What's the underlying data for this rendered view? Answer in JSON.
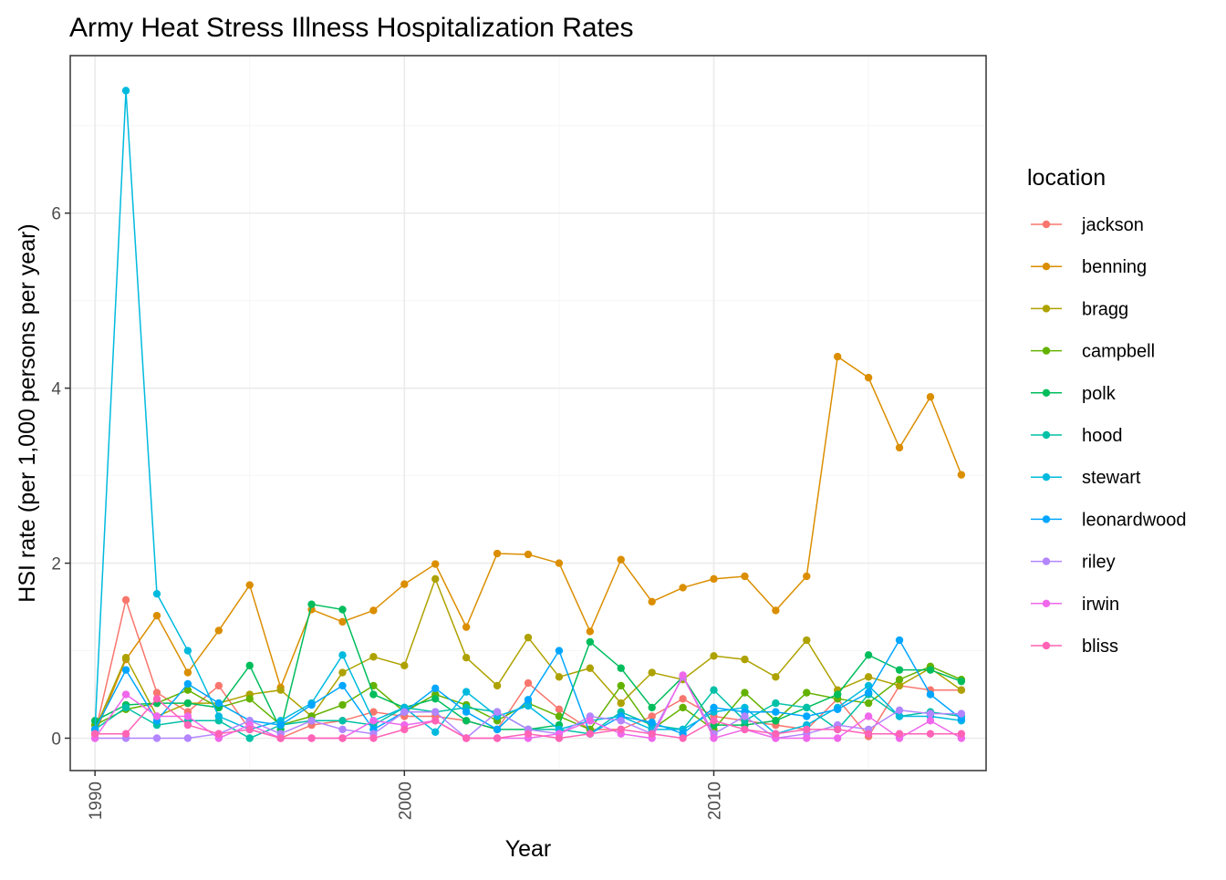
{
  "chart_data": {
    "type": "line",
    "title": "Army Heat Stress Illness Hospitalization Rates",
    "xlabel": "Year",
    "ylabel": "HSI rate (per 1,000 persons per year)",
    "xlim": [
      1989.2,
      2018.8
    ],
    "ylim": [
      -0.37,
      7.8
    ],
    "x_ticks": [
      1990,
      2000,
      2010
    ],
    "y_ticks": [
      0,
      2,
      4,
      6
    ],
    "grid": true,
    "legend": {
      "title": "location",
      "position": "right"
    },
    "x": [
      1990,
      1991,
      1992,
      1993,
      1994,
      1995,
      1996,
      1997,
      1998,
      1999,
      2000,
      2001,
      2002,
      2003,
      2004,
      2005,
      2006,
      2007,
      2008,
      2009,
      2010,
      2011,
      2012,
      2013,
      2014,
      2015,
      2016,
      2017,
      2018
    ],
    "series": [
      {
        "name": "jackson",
        "color": "#F8766D",
        "values": [
          0.05,
          1.58,
          0.52,
          0.3,
          0.6,
          0.1,
          0.0,
          0.15,
          0.2,
          0.3,
          0.25,
          0.25,
          0.2,
          0.1,
          0.63,
          0.33,
          0.1,
          0.1,
          0.25,
          0.45,
          0.25,
          0.2,
          0.15,
          0.1,
          0.45,
          0.02,
          0.6,
          0.55,
          0.55
        ]
      },
      {
        "name": "benning",
        "color": "#DB8E00",
        "values": [
          0.05,
          0.9,
          1.4,
          0.75,
          1.23,
          1.75,
          0.58,
          1.47,
          1.33,
          1.46,
          1.76,
          1.99,
          1.27,
          2.11,
          2.1,
          2.0,
          1.22,
          2.04,
          1.56,
          1.72,
          1.82,
          1.85,
          1.46,
          1.85,
          4.36,
          4.12,
          3.32,
          3.9,
          3.01
        ]
      },
      {
        "name": "bragg",
        "color": "#AEA200",
        "values": [
          0.1,
          0.92,
          0.25,
          0.4,
          0.4,
          0.5,
          0.55,
          0.25,
          0.75,
          0.93,
          0.83,
          1.82,
          0.92,
          0.6,
          1.15,
          0.7,
          0.8,
          0.4,
          0.75,
          0.67,
          0.94,
          0.9,
          0.7,
          1.12,
          0.55,
          0.7,
          0.6,
          0.8,
          0.55
        ]
      },
      {
        "name": "campbell",
        "color": "#64B200",
        "values": [
          0.15,
          0.33,
          0.4,
          0.55,
          0.35,
          0.45,
          0.15,
          0.25,
          0.38,
          0.6,
          0.3,
          0.5,
          0.38,
          0.2,
          0.4,
          0.25,
          0.1,
          0.6,
          0.1,
          0.35,
          0.1,
          0.52,
          0.2,
          0.52,
          0.45,
          0.4,
          0.67,
          0.82,
          0.67
        ]
      },
      {
        "name": "polk",
        "color": "#00BD5C",
        "values": [
          0.2,
          0.38,
          0.4,
          0.4,
          0.35,
          0.83,
          0.1,
          1.53,
          1.47,
          0.5,
          0.35,
          0.45,
          0.2,
          0.1,
          0.1,
          0.15,
          1.1,
          0.8,
          0.35,
          0.7,
          0.15,
          0.15,
          0.2,
          0.35,
          0.5,
          0.95,
          0.78,
          0.78,
          0.65
        ]
      },
      {
        "name": "hood",
        "color": "#00C1A7",
        "values": [
          0.1,
          0.35,
          0.15,
          0.2,
          0.2,
          0.0,
          0.15,
          0.2,
          0.2,
          0.15,
          0.35,
          0.3,
          0.35,
          0.3,
          0.1,
          0.1,
          0.05,
          0.3,
          0.15,
          0.1,
          0.55,
          0.2,
          0.4,
          0.35,
          0.1,
          0.5,
          0.25,
          0.3,
          0.25
        ]
      },
      {
        "name": "stewart",
        "color": "#00BADE",
        "values": [
          0.1,
          7.4,
          1.65,
          1.0,
          0.25,
          0.1,
          0.2,
          0.4,
          0.95,
          0.2,
          0.35,
          0.07,
          0.53,
          0.25,
          0.37,
          0.1,
          0.2,
          0.25,
          0.1,
          0.1,
          0.3,
          0.35,
          0.05,
          0.15,
          0.35,
          0.6,
          0.25,
          0.25,
          0.2
        ]
      },
      {
        "name": "leonardwood",
        "color": "#00A6FF",
        "values": [
          0.1,
          0.78,
          0.2,
          0.62,
          0.4,
          0.2,
          0.15,
          0.38,
          0.6,
          0.1,
          0.3,
          0.57,
          0.3,
          0.1,
          0.44,
          1.0,
          0.05,
          0.25,
          0.18,
          0.05,
          0.35,
          0.3,
          0.3,
          0.25,
          0.33,
          0.52,
          1.12,
          0.5,
          0.22
        ]
      },
      {
        "name": "riley",
        "color": "#B385FF",
        "values": [
          0.0,
          0.0,
          0.0,
          0.0,
          0.05,
          0.2,
          0.05,
          0.2,
          0.1,
          0.05,
          0.3,
          0.3,
          0.0,
          0.3,
          0.1,
          0.05,
          0.25,
          0.2,
          0.05,
          0.7,
          0.05,
          0.25,
          0.0,
          0.05,
          0.15,
          0.1,
          0.32,
          0.28,
          0.28
        ]
      },
      {
        "name": "irwin",
        "color": "#EF67EB",
        "values": [
          0.0,
          0.5,
          0.25,
          0.25,
          0.0,
          0.15,
          0.0,
          0.0,
          0.0,
          0.2,
          0.15,
          0.2,
          0.0,
          0.0,
          0.0,
          0.05,
          0.2,
          0.05,
          0.0,
          0.72,
          0.0,
          0.1,
          0.0,
          0.0,
          0.0,
          0.25,
          0.0,
          0.2,
          0.0
        ]
      },
      {
        "name": "bliss",
        "color": "#FF63B6",
        "values": [
          0.05,
          0.05,
          0.45,
          0.15,
          0.05,
          0.1,
          0.0,
          0.0,
          0.0,
          0.0,
          0.1,
          0.2,
          0.0,
          0.0,
          0.05,
          0.0,
          0.05,
          0.1,
          0.05,
          0.0,
          0.2,
          0.1,
          0.05,
          0.1,
          0.1,
          0.05,
          0.05,
          0.05,
          0.05
        ]
      }
    ]
  }
}
